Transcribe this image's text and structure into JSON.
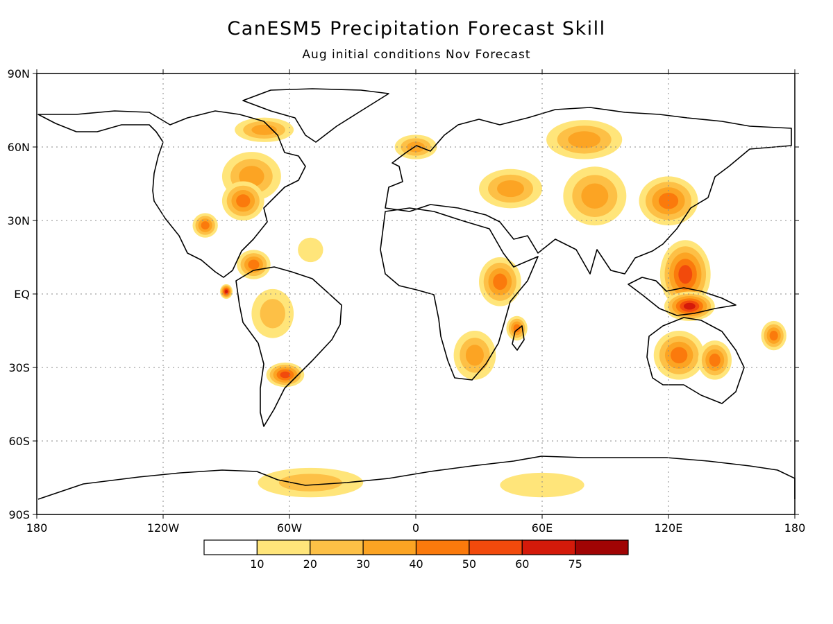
{
  "title": "CanESM5 Precipitation Forecast Skill",
  "subtitle": "Aug initial conditions   Nov Forecast",
  "map": {
    "projection": "equirectangular",
    "lon_range": [
      -180,
      180
    ],
    "lat_range": [
      -90,
      90
    ],
    "grid": "dotted",
    "lon_ticks": [
      {
        "value": -180,
        "label": "180"
      },
      {
        "value": -120,
        "label": "120W"
      },
      {
        "value": -60,
        "label": "60W"
      },
      {
        "value": 0,
        "label": "0"
      },
      {
        "value": 60,
        "label": "60E"
      },
      {
        "value": 120,
        "label": "120E"
      },
      {
        "value": 180,
        "label": "180"
      }
    ],
    "lat_ticks": [
      {
        "value": 90,
        "label": "90N"
      },
      {
        "value": 60,
        "label": "60N"
      },
      {
        "value": 30,
        "label": "30N"
      },
      {
        "value": 0,
        "label": "EQ"
      },
      {
        "value": -30,
        "label": "30S"
      },
      {
        "value": -60,
        "label": "60S"
      },
      {
        "value": -90,
        "label": "90S"
      }
    ]
  },
  "colorbar": {
    "bins": [
      {
        "color": "#ffffff"
      },
      {
        "color": "#ffe57a"
      },
      {
        "color": "#fdc046"
      },
      {
        "color": "#fca423"
      },
      {
        "color": "#fb7a0c"
      },
      {
        "color": "#f24a0c"
      },
      {
        "color": "#d41a0a"
      },
      {
        "color": "#a00404"
      }
    ],
    "labels": [
      "10",
      "20",
      "30",
      "40",
      "50",
      "60",
      "75"
    ]
  },
  "skill_regions": [
    {
      "lon": -72,
      "lat": 67,
      "rx": 14,
      "ry": 5,
      "level": 3
    },
    {
      "lon": -78,
      "lat": 48,
      "rx": 14,
      "ry": 10,
      "level": 3
    },
    {
      "lon": -82,
      "lat": 38,
      "rx": 10,
      "ry": 8,
      "level": 4
    },
    {
      "lon": -100,
      "lat": 28,
      "rx": 6,
      "ry": 5,
      "level": 4
    },
    {
      "lon": -77,
      "lat": 12,
      "rx": 8,
      "ry": 6,
      "level": 4
    },
    {
      "lon": -90,
      "lat": 1,
      "rx": 3,
      "ry": 3,
      "level": 6
    },
    {
      "lon": -68,
      "lat": -8,
      "rx": 10,
      "ry": 10,
      "level": 2
    },
    {
      "lon": -62,
      "lat": -33,
      "rx": 9,
      "ry": 5,
      "level": 5
    },
    {
      "lon": -50,
      "lat": 18,
      "rx": 6,
      "ry": 5,
      "level": 1
    },
    {
      "lon": 0,
      "lat": 60,
      "rx": 10,
      "ry": 5,
      "level": 3
    },
    {
      "lon": 45,
      "lat": 43,
      "rx": 15,
      "ry": 8,
      "level": 3
    },
    {
      "lon": 40,
      "lat": 5,
      "rx": 10,
      "ry": 10,
      "level": 4
    },
    {
      "lon": 28,
      "lat": -25,
      "rx": 10,
      "ry": 10,
      "level": 3
    },
    {
      "lon": 48,
      "lat": -14,
      "rx": 5,
      "ry": 5,
      "level": 4
    },
    {
      "lon": 80,
      "lat": 63,
      "rx": 18,
      "ry": 8,
      "level": 3
    },
    {
      "lon": 85,
      "lat": 40,
      "rx": 15,
      "ry": 12,
      "level": 3
    },
    {
      "lon": 120,
      "lat": 38,
      "rx": 14,
      "ry": 10,
      "level": 4
    },
    {
      "lon": 128,
      "lat": 8,
      "rx": 12,
      "ry": 14,
      "level": 5
    },
    {
      "lon": 130,
      "lat": -5,
      "rx": 12,
      "ry": 6,
      "level": 6
    },
    {
      "lon": 125,
      "lat": -25,
      "rx": 12,
      "ry": 10,
      "level": 4
    },
    {
      "lon": 142,
      "lat": -27,
      "rx": 8,
      "ry": 8,
      "level": 4
    },
    {
      "lon": 170,
      "lat": -17,
      "rx": 6,
      "ry": 6,
      "level": 4
    },
    {
      "lon": -50,
      "lat": -77,
      "rx": 25,
      "ry": 6,
      "level": 2
    },
    {
      "lon": 60,
      "lat": -78,
      "rx": 20,
      "ry": 5,
      "level": 1
    }
  ]
}
